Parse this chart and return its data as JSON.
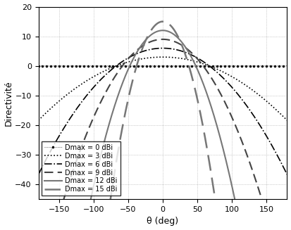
{
  "title": "",
  "xlabel": "θ (deg)",
  "ylabel": "Directivité",
  "xlim": [
    -180,
    180
  ],
  "ylim": [
    -45,
    20
  ],
  "yticks": [
    -40,
    -30,
    -20,
    -10,
    0,
    10,
    20
  ],
  "xticks": [
    -150,
    -100,
    -50,
    0,
    50,
    100,
    150
  ],
  "Dmax_values_dBi": [
    0,
    3,
    6,
    9,
    12,
    15
  ],
  "legend_labels": [
    "Dmax = 0 dBi",
    "Dmax = 3 dBi",
    "Dmax = 6 dBi",
    "Dmax = 9 dBi",
    "Dmax = 12 dBi",
    "Dmax = 15 dBi"
  ],
  "legend_loc": "lower left",
  "grid": true,
  "background_color": "#ffffff"
}
